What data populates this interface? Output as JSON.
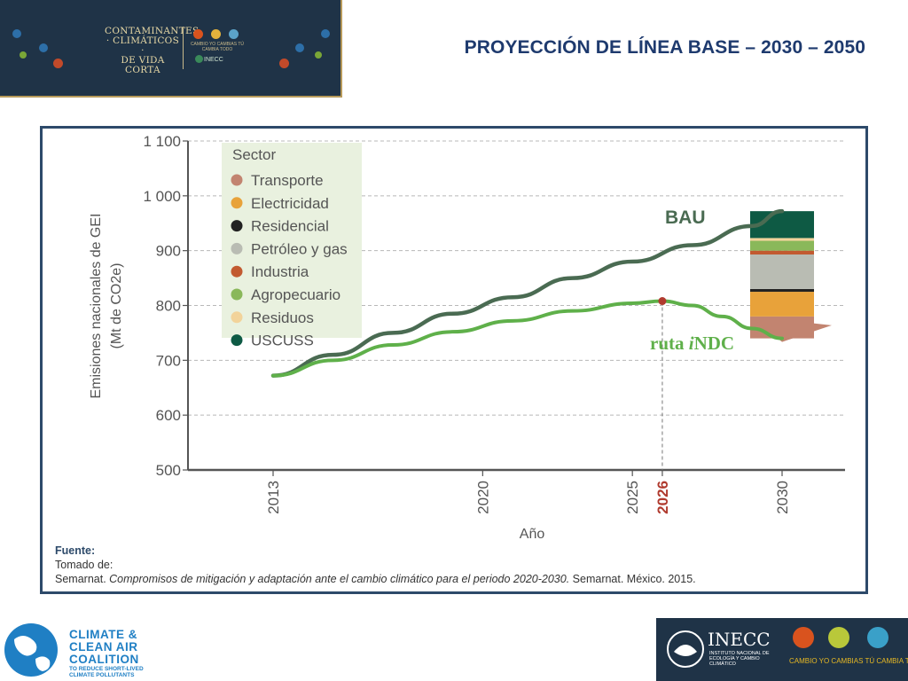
{
  "banner": {
    "line1": "CONTAMINANTES",
    "line2": "· CLIMÁTICOS ·",
    "line3": "DE VIDA CORTA",
    "logos_caption": "CAMBIO YO  CAMBIAS TÚ  CAMBIA TODO",
    "inecc_mini": "INECC"
  },
  "page_title": "PROYECCIÓN DE LÍNEA BASE – 2030 – 2050",
  "chart_data": {
    "type": "line",
    "ylabel_line1": "Emisiones nacionales de GEI",
    "ylabel_line2": "(Mt de CO2e)",
    "xlabel": "Año",
    "ylim": [
      500,
      1100
    ],
    "y_ticks": [
      500,
      600,
      700,
      800,
      900,
      1000,
      1100
    ],
    "y_tick_labels": [
      "500",
      "600",
      "700",
      "800",
      "900",
      "1 000",
      "1 100"
    ],
    "xlim": [
      2013,
      2030
    ],
    "x_ticks": [
      2013,
      2020,
      2025,
      2026,
      2030
    ],
    "x_tick_labels": [
      "2013",
      "2020",
      "2025",
      "2026",
      "2030"
    ],
    "highlight_year": 2026,
    "grid": "horizontal dashed",
    "series": [
      {
        "name": "BAU",
        "color": "#4a6b52",
        "x": [
          2013,
          2015,
          2017,
          2019,
          2021,
          2023,
          2025,
          2027,
          2029,
          2030
        ],
        "y": [
          672,
          710,
          750,
          785,
          815,
          850,
          880,
          910,
          945,
          972
        ]
      },
      {
        "name": "ruta iNDC",
        "color": "#5fb04a",
        "x": [
          2013,
          2015,
          2017,
          2019,
          2021,
          2023,
          2025,
          2026,
          2027,
          2028,
          2029,
          2030
        ],
        "y": [
          672,
          700,
          728,
          752,
          772,
          790,
          804,
          808,
          800,
          780,
          758,
          740
        ]
      }
    ],
    "peak_point": {
      "x": 2026,
      "y": 808,
      "color": "#b03a2e"
    },
    "legend": {
      "title": "Sector",
      "placement": "top-left",
      "items": [
        {
          "label": "Transporte",
          "color": "#c28470"
        },
        {
          "label": "Electricidad",
          "color": "#e8a23a"
        },
        {
          "label": "Residencial",
          "color": "#222222"
        },
        {
          "label": "Petróleo y gas",
          "color": "#b9bcb3"
        },
        {
          "label": "Industria",
          "color": "#c25a30"
        },
        {
          "label": "Agropecuario",
          "color": "#8ab85a"
        },
        {
          "label": "Residuos",
          "color": "#f2d39a"
        },
        {
          "label": "USCUSS",
          "color": "#0e5a44"
        }
      ]
    },
    "stacked_bar_2030": {
      "x": 2030,
      "segments": [
        {
          "sector": "Transporte",
          "from": 740,
          "to": 780
        },
        {
          "sector": "Electricidad",
          "from": 780,
          "to": 825
        },
        {
          "sector": "Residencial",
          "from": 825,
          "to": 830
        },
        {
          "sector": "Petróleo y gas",
          "from": 830,
          "to": 893
        },
        {
          "sector": "Industria",
          "from": 893,
          "to": 900
        },
        {
          "sector": "Agropecuario",
          "from": 900,
          "to": 918
        },
        {
          "sector": "Residuos",
          "from": 918,
          "to": 923
        },
        {
          "sector": "USCUSS",
          "from": 923,
          "to": 972
        }
      ]
    },
    "label_bau": "BAU",
    "label_indc_prefix": "ruta ",
    "label_indc_italic": "i",
    "label_indc_suffix": "NDC"
  },
  "source": {
    "heading": "Fuente:",
    "line2": "Tomado de:",
    "line3_prefix": "Semarnat. ",
    "line3_italic": "Compromisos de mitigación y adaptación ante el cambio climático para el periodo 2020-2030.",
    "line3_suffix": " Semarnat. México. 2015."
  },
  "footer": {
    "ccac_line1": "CLIMATE &",
    "ccac_line2": "CLEAN AIR",
    "ccac_line3": "COALITION",
    "ccac_sub1": "TO REDUCE SHORT-LIVED",
    "ccac_sub2": "CLIMATE POLLUTANTS",
    "inecc_name": "INECC",
    "inecc_full": "INSTITUTO NACIONAL DE ECOLOGÍA Y CAMBIO CLIMÁTICO",
    "inecc_slogan": "CAMBIO YO  CAMBIAS TÚ  CAMBIA TODO"
  }
}
